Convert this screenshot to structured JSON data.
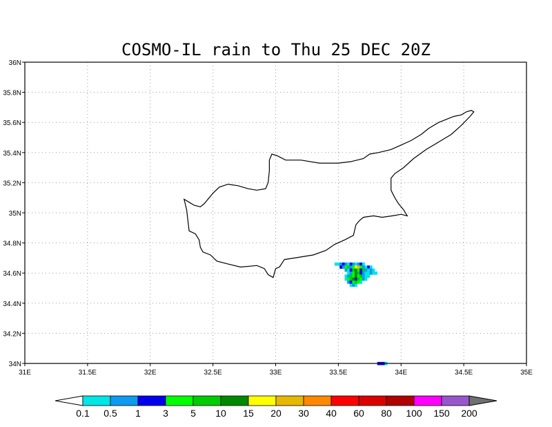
{
  "title": "COSMO-IL rain to Thu 25 DEC 20Z",
  "map": {
    "lon_range": [
      31,
      35
    ],
    "lat_range": [
      34,
      36
    ],
    "lon_ticks": [
      {
        "value": 31.0,
        "label": "31E"
      },
      {
        "value": 31.5,
        "label": "31.5E"
      },
      {
        "value": 32.0,
        "label": "32E"
      },
      {
        "value": 32.5,
        "label": "32.5E"
      },
      {
        "value": 33.0,
        "label": "33E"
      },
      {
        "value": 33.5,
        "label": "33.5E"
      },
      {
        "value": 34.0,
        "label": "34E"
      },
      {
        "value": 34.5,
        "label": "34.5E"
      },
      {
        "value": 35.0,
        "label": "35E"
      }
    ],
    "lat_ticks": [
      {
        "value": 34.0,
        "label": "34N"
      },
      {
        "value": 34.2,
        "label": "34.2N"
      },
      {
        "value": 34.4,
        "label": "34.4N"
      },
      {
        "value": 34.6,
        "label": "34.6N"
      },
      {
        "value": 34.8,
        "label": "34.8N"
      },
      {
        "value": 35.0,
        "label": "35N"
      },
      {
        "value": 35.2,
        "label": "35.2N"
      },
      {
        "value": 35.4,
        "label": "35.4N"
      },
      {
        "value": 35.6,
        "label": "35.6N"
      },
      {
        "value": 35.8,
        "label": "35.8N"
      },
      {
        "value": 36.0,
        "label": "36N"
      }
    ],
    "grid": true,
    "coastline": [
      [
        32.27,
        35.09
      ],
      [
        32.31,
        35.07
      ],
      [
        32.35,
        35.05
      ],
      [
        32.4,
        35.04
      ],
      [
        32.43,
        35.06
      ],
      [
        32.5,
        35.13
      ],
      [
        32.55,
        35.17
      ],
      [
        32.62,
        35.19
      ],
      [
        32.7,
        35.18
      ],
      [
        32.78,
        35.16
      ],
      [
        32.85,
        35.15
      ],
      [
        32.92,
        35.16
      ],
      [
        32.94,
        35.2
      ],
      [
        32.95,
        35.28
      ],
      [
        32.95,
        35.35
      ],
      [
        32.97,
        35.39
      ],
      [
        33.01,
        35.38
      ],
      [
        33.08,
        35.35
      ],
      [
        33.2,
        35.35
      ],
      [
        33.35,
        35.33
      ],
      [
        33.5,
        35.33
      ],
      [
        33.6,
        35.34
      ],
      [
        33.7,
        35.36
      ],
      [
        33.75,
        35.39
      ],
      [
        33.82,
        35.4
      ],
      [
        33.92,
        35.42
      ],
      [
        34.0,
        35.45
      ],
      [
        34.08,
        35.48
      ],
      [
        34.16,
        35.52
      ],
      [
        34.22,
        35.56
      ],
      [
        34.3,
        35.6
      ],
      [
        34.36,
        35.62
      ],
      [
        34.42,
        35.64
      ],
      [
        34.48,
        35.65
      ],
      [
        34.52,
        35.67
      ],
      [
        34.56,
        35.68
      ],
      [
        34.58,
        35.67
      ],
      [
        34.55,
        35.64
      ],
      [
        34.48,
        35.58
      ],
      [
        34.4,
        35.52
      ],
      [
        34.3,
        35.47
      ],
      [
        34.2,
        35.42
      ],
      [
        34.1,
        35.36
      ],
      [
        34.02,
        35.3
      ],
      [
        33.95,
        35.26
      ],
      [
        33.92,
        35.23
      ],
      [
        33.92,
        35.15
      ],
      [
        33.95,
        35.1
      ],
      [
        33.98,
        35.06
      ],
      [
        34.02,
        35.02
      ],
      [
        34.05,
        34.98
      ],
      [
        34.0,
        34.99
      ],
      [
        33.93,
        34.98
      ],
      [
        33.85,
        34.97
      ],
      [
        33.78,
        34.98
      ],
      [
        33.7,
        34.97
      ],
      [
        33.67,
        34.95
      ],
      [
        33.64,
        34.92
      ],
      [
        33.62,
        34.85
      ],
      [
        33.55,
        34.82
      ],
      [
        33.47,
        34.79
      ],
      [
        33.4,
        34.75
      ],
      [
        33.3,
        34.72
      ],
      [
        33.15,
        34.7
      ],
      [
        33.07,
        34.69
      ],
      [
        33.03,
        34.64
      ],
      [
        33.0,
        34.63
      ],
      [
        32.98,
        34.57
      ],
      [
        32.94,
        34.59
      ],
      [
        32.91,
        34.63
      ],
      [
        32.85,
        34.65
      ],
      [
        32.72,
        34.64
      ],
      [
        32.62,
        34.66
      ],
      [
        32.53,
        34.68
      ],
      [
        32.48,
        34.72
      ],
      [
        32.42,
        34.74
      ],
      [
        32.4,
        34.77
      ],
      [
        32.39,
        34.82
      ],
      [
        32.36,
        34.86
      ],
      [
        32.31,
        34.88
      ],
      [
        32.3,
        34.95
      ],
      [
        32.29,
        35.02
      ],
      [
        32.27,
        35.09
      ]
    ]
  },
  "rain_cells": [
    {
      "lon": 33.48,
      "lat": 34.66,
      "class": 1
    },
    {
      "lon": 33.5,
      "lat": 34.66,
      "class": 1
    },
    {
      "lon": 33.52,
      "lat": 34.66,
      "class": 2
    },
    {
      "lon": 33.54,
      "lat": 34.66,
      "class": 3
    },
    {
      "lon": 33.56,
      "lat": 34.66,
      "class": 2
    },
    {
      "lon": 33.58,
      "lat": 34.66,
      "class": 1
    },
    {
      "lon": 33.6,
      "lat": 34.66,
      "class": 3
    },
    {
      "lon": 33.62,
      "lat": 34.66,
      "class": 2
    },
    {
      "lon": 33.64,
      "lat": 34.66,
      "class": 1
    },
    {
      "lon": 33.66,
      "lat": 34.66,
      "class": 2
    },
    {
      "lon": 33.68,
      "lat": 34.66,
      "class": 3
    },
    {
      "lon": 33.7,
      "lat": 34.66,
      "class": 1
    },
    {
      "lon": 33.52,
      "lat": 34.64,
      "class": 3
    },
    {
      "lon": 33.54,
      "lat": 34.64,
      "class": 2
    },
    {
      "lon": 33.56,
      "lat": 34.64,
      "class": 4
    },
    {
      "lon": 33.58,
      "lat": 34.64,
      "class": 5
    },
    {
      "lon": 33.6,
      "lat": 34.64,
      "class": 2
    },
    {
      "lon": 33.62,
      "lat": 34.64,
      "class": 4
    },
    {
      "lon": 33.64,
      "lat": 34.64,
      "class": 7
    },
    {
      "lon": 33.66,
      "lat": 34.64,
      "class": 8
    },
    {
      "lon": 33.68,
      "lat": 34.64,
      "class": 4
    },
    {
      "lon": 33.7,
      "lat": 34.64,
      "class": 2
    },
    {
      "lon": 33.72,
      "lat": 34.64,
      "class": 1
    },
    {
      "lon": 33.74,
      "lat": 34.64,
      "class": 3
    },
    {
      "lon": 33.76,
      "lat": 34.64,
      "class": 1
    },
    {
      "lon": 33.56,
      "lat": 34.62,
      "class": 2
    },
    {
      "lon": 33.58,
      "lat": 34.62,
      "class": 1
    },
    {
      "lon": 33.6,
      "lat": 34.62,
      "class": 3
    },
    {
      "lon": 33.62,
      "lat": 34.62,
      "class": 5
    },
    {
      "lon": 33.64,
      "lat": 34.62,
      "class": 6
    },
    {
      "lon": 33.66,
      "lat": 34.62,
      "class": 4
    },
    {
      "lon": 33.68,
      "lat": 34.62,
      "class": 3
    },
    {
      "lon": 33.7,
      "lat": 34.62,
      "class": 5
    },
    {
      "lon": 33.72,
      "lat": 34.62,
      "class": 2
    },
    {
      "lon": 33.74,
      "lat": 34.62,
      "class": 1
    },
    {
      "lon": 33.76,
      "lat": 34.62,
      "class": 2
    },
    {
      "lon": 33.78,
      "lat": 34.62,
      "class": 1
    },
    {
      "lon": 33.58,
      "lat": 34.6,
      "class": 1
    },
    {
      "lon": 33.6,
      "lat": 34.6,
      "class": 2
    },
    {
      "lon": 33.62,
      "lat": 34.6,
      "class": 4
    },
    {
      "lon": 33.64,
      "lat": 34.6,
      "class": 6
    },
    {
      "lon": 33.66,
      "lat": 34.6,
      "class": 5
    },
    {
      "lon": 33.68,
      "lat": 34.6,
      "class": 3
    },
    {
      "lon": 33.7,
      "lat": 34.6,
      "class": 2
    },
    {
      "lon": 33.72,
      "lat": 34.6,
      "class": 1
    },
    {
      "lon": 33.74,
      "lat": 34.6,
      "class": 1
    },
    {
      "lon": 33.76,
      "lat": 34.6,
      "class": 2
    },
    {
      "lon": 33.78,
      "lat": 34.6,
      "class": 1
    },
    {
      "lon": 33.8,
      "lat": 34.6,
      "class": 1
    },
    {
      "lon": 33.56,
      "lat": 34.58,
      "class": 1
    },
    {
      "lon": 33.58,
      "lat": 34.58,
      "class": 2
    },
    {
      "lon": 33.6,
      "lat": 34.58,
      "class": 5
    },
    {
      "lon": 33.62,
      "lat": 34.58,
      "class": 4
    },
    {
      "lon": 33.64,
      "lat": 34.58,
      "class": 6
    },
    {
      "lon": 33.66,
      "lat": 34.58,
      "class": 4
    },
    {
      "lon": 33.68,
      "lat": 34.58,
      "class": 5
    },
    {
      "lon": 33.7,
      "lat": 34.58,
      "class": 2
    },
    {
      "lon": 33.72,
      "lat": 34.58,
      "class": 1
    },
    {
      "lon": 33.74,
      "lat": 34.58,
      "class": 1
    },
    {
      "lon": 33.56,
      "lat": 34.56,
      "class": 1
    },
    {
      "lon": 33.58,
      "lat": 34.56,
      "class": 4
    },
    {
      "lon": 33.6,
      "lat": 34.56,
      "class": 5
    },
    {
      "lon": 33.62,
      "lat": 34.56,
      "class": 6
    },
    {
      "lon": 33.64,
      "lat": 34.56,
      "class": 3
    },
    {
      "lon": 33.66,
      "lat": 34.56,
      "class": 5
    },
    {
      "lon": 33.68,
      "lat": 34.56,
      "class": 4
    },
    {
      "lon": 33.7,
      "lat": 34.56,
      "class": 2
    },
    {
      "lon": 33.72,
      "lat": 34.56,
      "class": 1
    },
    {
      "lon": 33.58,
      "lat": 34.54,
      "class": 2
    },
    {
      "lon": 33.6,
      "lat": 34.54,
      "class": 3
    },
    {
      "lon": 33.62,
      "lat": 34.54,
      "class": 4
    },
    {
      "lon": 33.64,
      "lat": 34.54,
      "class": 5
    },
    {
      "lon": 33.66,
      "lat": 34.54,
      "class": 4
    },
    {
      "lon": 33.68,
      "lat": 34.54,
      "class": 1
    },
    {
      "lon": 33.6,
      "lat": 34.52,
      "class": 1
    },
    {
      "lon": 33.62,
      "lat": 34.52,
      "class": 2
    },
    {
      "lon": 33.64,
      "lat": 34.52,
      "class": 1
    },
    {
      "lon": 33.82,
      "lat": 34.0,
      "class": 3
    },
    {
      "lon": 33.84,
      "lat": 34.0,
      "class": 3
    },
    {
      "lon": 33.86,
      "lat": 34.0,
      "class": 3
    },
    {
      "lon": 33.88,
      "lat": 34.0,
      "class": 1
    }
  ],
  "colorbar": {
    "colors": [
      "#ffffff",
      "#00e5e5",
      "#0d9af0",
      "#0000ee",
      "#00ff00",
      "#00cc00",
      "#008800",
      "#ffff00",
      "#e6b800",
      "#ff8800",
      "#ff0000",
      "#dd0000",
      "#b00000",
      "#ff00ff",
      "#9955cc",
      "#707070"
    ],
    "labels": [
      "0.1",
      "0.5",
      "1",
      "3",
      "5",
      "10",
      "15",
      "20",
      "30",
      "40",
      "60",
      "80",
      "100",
      "150",
      "200"
    ]
  }
}
